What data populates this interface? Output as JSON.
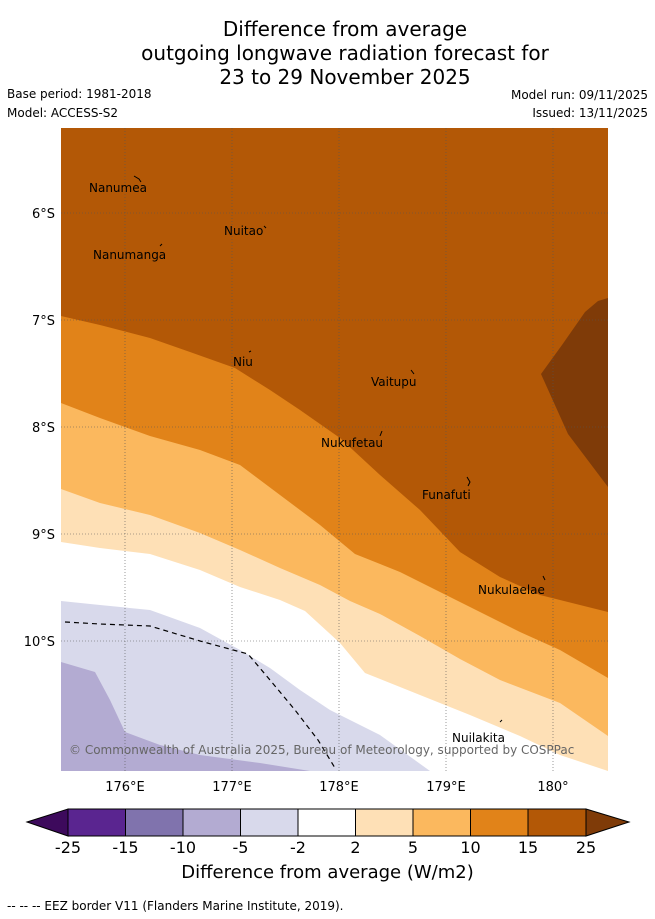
{
  "title": {
    "line1": "Difference from average",
    "line2": "outgoing longwave radiation forecast for",
    "line3": "23 to 29 November 2025"
  },
  "meta": {
    "base_period": "Base period: 1981-2018",
    "model": "Model: ACCESS-S2",
    "model_run": "Model run: 09/11/2025",
    "issued": "Issued: 13/11/2025"
  },
  "map": {
    "lat_labels": [
      "6°S",
      "7°S",
      "8°S",
      "9°S",
      "10°S"
    ],
    "lon_labels": [
      "176°E",
      "177°E",
      "178°E",
      "179°E",
      "180°"
    ],
    "places": [
      {
        "name": "Nanumea"
      },
      {
        "name": "Nuitao"
      },
      {
        "name": "Nanumanga"
      },
      {
        "name": "Niu"
      },
      {
        "name": "Vaitupu"
      },
      {
        "name": "Nukufetau"
      },
      {
        "name": "Funafuti"
      },
      {
        "name": "Nukulaelae"
      },
      {
        "name": "Nuilakita"
      }
    ],
    "copyright": "© Commonwealth of Australia 2025, Bureau of Meteorology, supported by COSPPac"
  },
  "colorbar": {
    "title": "Difference from average (W/m2)",
    "ticks": [
      "-25",
      "-15",
      "-10",
      "-5",
      "-2",
      "2",
      "5",
      "10",
      "15",
      "25"
    ],
    "colors": {
      "below": "#3d0a5c",
      "b1": "#5a2590",
      "b2": "#8073ad",
      "b3": "#b3abd2",
      "b4": "#d8d9eb",
      "b5": "#ffffff",
      "b6": "#fee0b6",
      "b7": "#fbb85e",
      "b8": "#e18319",
      "b9": "#b35806",
      "above": "#7f3b08"
    }
  },
  "footnote": "-- -- -- EEZ border V11 (Flanders Marine Institute, 2019)."
}
